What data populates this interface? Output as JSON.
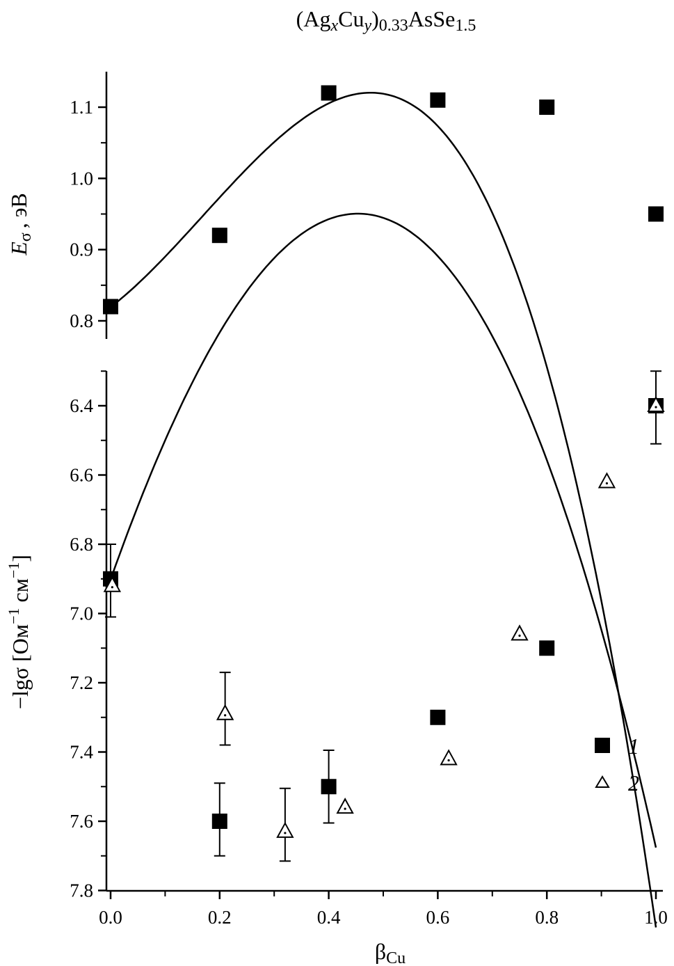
{
  "chart_data": [
    {
      "type": "scatter",
      "title": "(Ag_xCu_y)0.33AsSe1.5",
      "title_parts": {
        "p1": "(Ag",
        "x": "x",
        "p2": "Cu",
        "y": "y",
        "p3": ")",
        "sub1": "0.33",
        "p4": "AsSe",
        "sub2": "1.5"
      },
      "ylabel_parts": {
        "main": "E",
        "sub": "σ",
        "rest": ", эВ"
      },
      "xlim": [
        0,
        1.0
      ],
      "ylim": [
        0.78,
        1.15
      ],
      "yticks": [
        "0.8",
        "0.9",
        "1.0",
        "1.1"
      ],
      "ytick_values": [
        0.8,
        0.9,
        1.0,
        1.1
      ],
      "yminor": [
        0.85,
        0.95,
        1.05
      ],
      "series": [
        {
          "marker": "filled-square",
          "points": [
            [
              0.0,
              0.82
            ],
            [
              0.2,
              0.92
            ],
            [
              0.4,
              1.12
            ],
            [
              0.6,
              1.11
            ],
            [
              0.8,
              1.1
            ],
            [
              1.0,
              0.95
            ]
          ]
        }
      ],
      "fit_curve": {
        "coeffs": [
          0.8193,
          0.5873,
          1.5054,
          -2.9637
        ]
      },
      "grid": false
    },
    {
      "type": "scatter",
      "ylabel_parts": {
        "main": "−lgσ [Ом",
        "sup1": "−1",
        "mid": " см",
        "sup2": "−1",
        "end": "]"
      },
      "xlabel_parts": {
        "main": "β",
        "sub": "Cu"
      },
      "xlim": [
        0,
        1.0
      ],
      "ylim": [
        7.8,
        6.3
      ],
      "y_inverted": true,
      "xticks": [
        "0.0",
        "0.2",
        "0.4",
        "0.6",
        "0.8",
        "1.0"
      ],
      "xtick_values": [
        0.0,
        0.2,
        0.4,
        0.6,
        0.8,
        1.0
      ],
      "xminor": [
        0.1,
        0.3,
        0.5,
        0.7,
        0.9
      ],
      "yticks": [
        "6.4",
        "6.6",
        "6.8",
        "7.0",
        "7.2",
        "7.4",
        "7.6",
        "7.8"
      ],
      "ytick_values": [
        6.4,
        6.6,
        6.8,
        7.0,
        7.2,
        7.4,
        7.6,
        7.8
      ],
      "yminor": [
        6.3,
        6.5,
        6.7,
        6.9,
        7.1,
        7.3,
        7.5,
        7.7
      ],
      "series": [
        {
          "name": "1",
          "marker": "filled-square",
          "points": [
            [
              0.0,
              6.9
            ],
            [
              0.2,
              7.6
            ],
            [
              0.4,
              7.5
            ],
            [
              0.6,
              7.3
            ],
            [
              0.8,
              7.1
            ],
            [
              1.0,
              6.4
            ]
          ]
        },
        {
          "name": "2",
          "marker": "open-triangle",
          "points": [
            [
              0.003,
              6.92
            ],
            [
              0.21,
              7.29
            ],
            [
              0.32,
              7.63
            ],
            [
              0.43,
              7.56
            ],
            [
              0.62,
              7.42
            ],
            [
              0.75,
              7.06
            ],
            [
              0.91,
              6.62
            ],
            [
              1.0,
              6.4
            ]
          ]
        }
      ],
      "error_bars": [
        {
          "x": 0.0,
          "y_low": 6.8,
          "y_high": 7.01
        },
        {
          "x": 0.2,
          "y_low": 7.49,
          "y_high": 7.7
        },
        {
          "x": 0.21,
          "y_low": 7.17,
          "y_high": 7.38
        },
        {
          "x": 0.32,
          "y_low": 7.505,
          "y_high": 7.715
        },
        {
          "x": 0.4,
          "y_low": 7.395,
          "y_high": 7.605
        },
        {
          "x": 1.0,
          "y_low": 6.3,
          "y_high": 6.51
        }
      ],
      "fit_curve": {
        "coeffs": [
          6.902,
          -4.4526,
          4.2263,
          1.0003
        ]
      },
      "legend": {
        "placement": "lower-right",
        "labels": [
          "1",
          "2"
        ]
      },
      "grid": false
    }
  ]
}
